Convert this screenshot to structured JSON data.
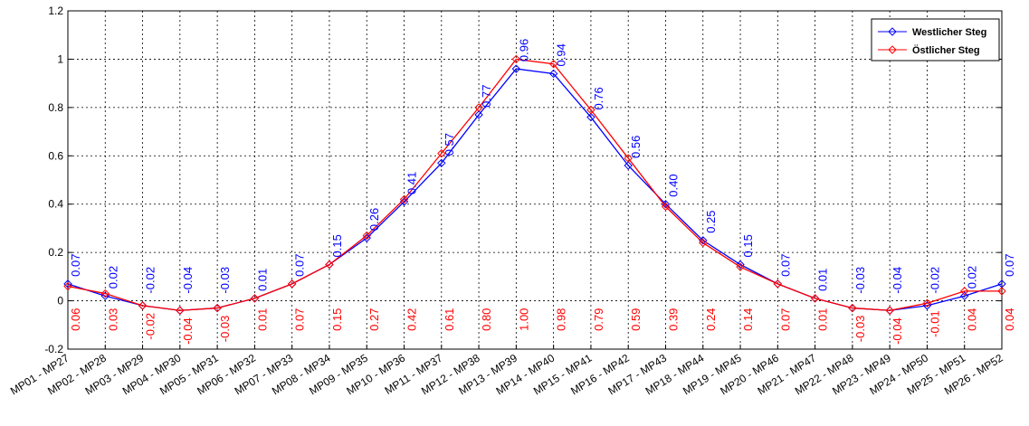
{
  "chart_data": {
    "type": "line",
    "title": "",
    "xlabel": "",
    "ylabel": "",
    "ylim": [
      -0.2,
      1.2
    ],
    "yticks": [
      "-0.2",
      "0",
      "0.2",
      "0.4",
      "0.6",
      "0.8",
      "1",
      "1.2"
    ],
    "grid": true,
    "legend_position": "top-right",
    "categories": [
      "MP01 - MP27",
      "MP02 - MP28",
      "MP03 - MP29",
      "MP04 - MP30",
      "MP05 - MP31",
      "MP06 - MP32",
      "MP07 - MP33",
      "MP08 - MP34",
      "MP09 - MP35",
      "MP10 - MP36",
      "MP11 - MP37",
      "MP12 - MP38",
      "MP13 - MP39",
      "MP14 - MP40",
      "MP15 - MP41",
      "MP16 - MP42",
      "MP17 - MP43",
      "MP18 - MP44",
      "MP19 - MP45",
      "MP20 - MP46",
      "MP21 - MP47",
      "MP22 - MP48",
      "MP23 - MP49",
      "MP24 - MP50",
      "MP25 - MP51",
      "MP26 - MP52"
    ],
    "series": [
      {
        "name": "Westlicher Steg",
        "color": "#0000ff",
        "values": [
          0.07,
          0.02,
          -0.02,
          -0.04,
          -0.03,
          0.01,
          0.07,
          0.15,
          0.26,
          0.41,
          0.57,
          0.77,
          0.96,
          0.94,
          0.76,
          0.56,
          0.4,
          0.25,
          0.15,
          0.07,
          0.01,
          -0.03,
          -0.04,
          -0.02,
          0.02,
          0.07
        ],
        "labels": [
          "0.07",
          "0.02",
          "-0.02",
          "-0.04",
          "-0.03",
          "0.01",
          "0.07",
          "0.15",
          "0.26",
          "0.41",
          "0.57",
          "0.77",
          "0.96",
          "0.94",
          "0.76",
          "0.56",
          "0.40",
          "0.25",
          "0.15",
          "0.07",
          "0.01",
          "-0.03",
          "-0.04",
          "-0.02",
          "0.02",
          "0.07"
        ]
      },
      {
        "name": "Östlicher Steg",
        "color": "#ff0000",
        "values": [
          0.06,
          0.03,
          -0.02,
          -0.04,
          -0.03,
          0.01,
          0.07,
          0.15,
          0.27,
          0.42,
          0.61,
          0.8,
          1.0,
          0.98,
          0.79,
          0.59,
          0.39,
          0.24,
          0.14,
          0.07,
          0.01,
          -0.03,
          -0.04,
          -0.01,
          0.04,
          0.04
        ],
        "labels": [
          "0.06",
          "0.03",
          "-0.02",
          "-0.04",
          "-0.03",
          "0.01",
          "0.07",
          "0.15",
          "0.27",
          "0.42",
          "0.61",
          "0.80",
          "1.00",
          "0.98",
          "0.79",
          "0.59",
          "0.39",
          "0.24",
          "0.14",
          "0.07",
          "0.01",
          "-0.03",
          "-0.04",
          "-0.01",
          "0.04",
          "0.04"
        ]
      }
    ]
  }
}
